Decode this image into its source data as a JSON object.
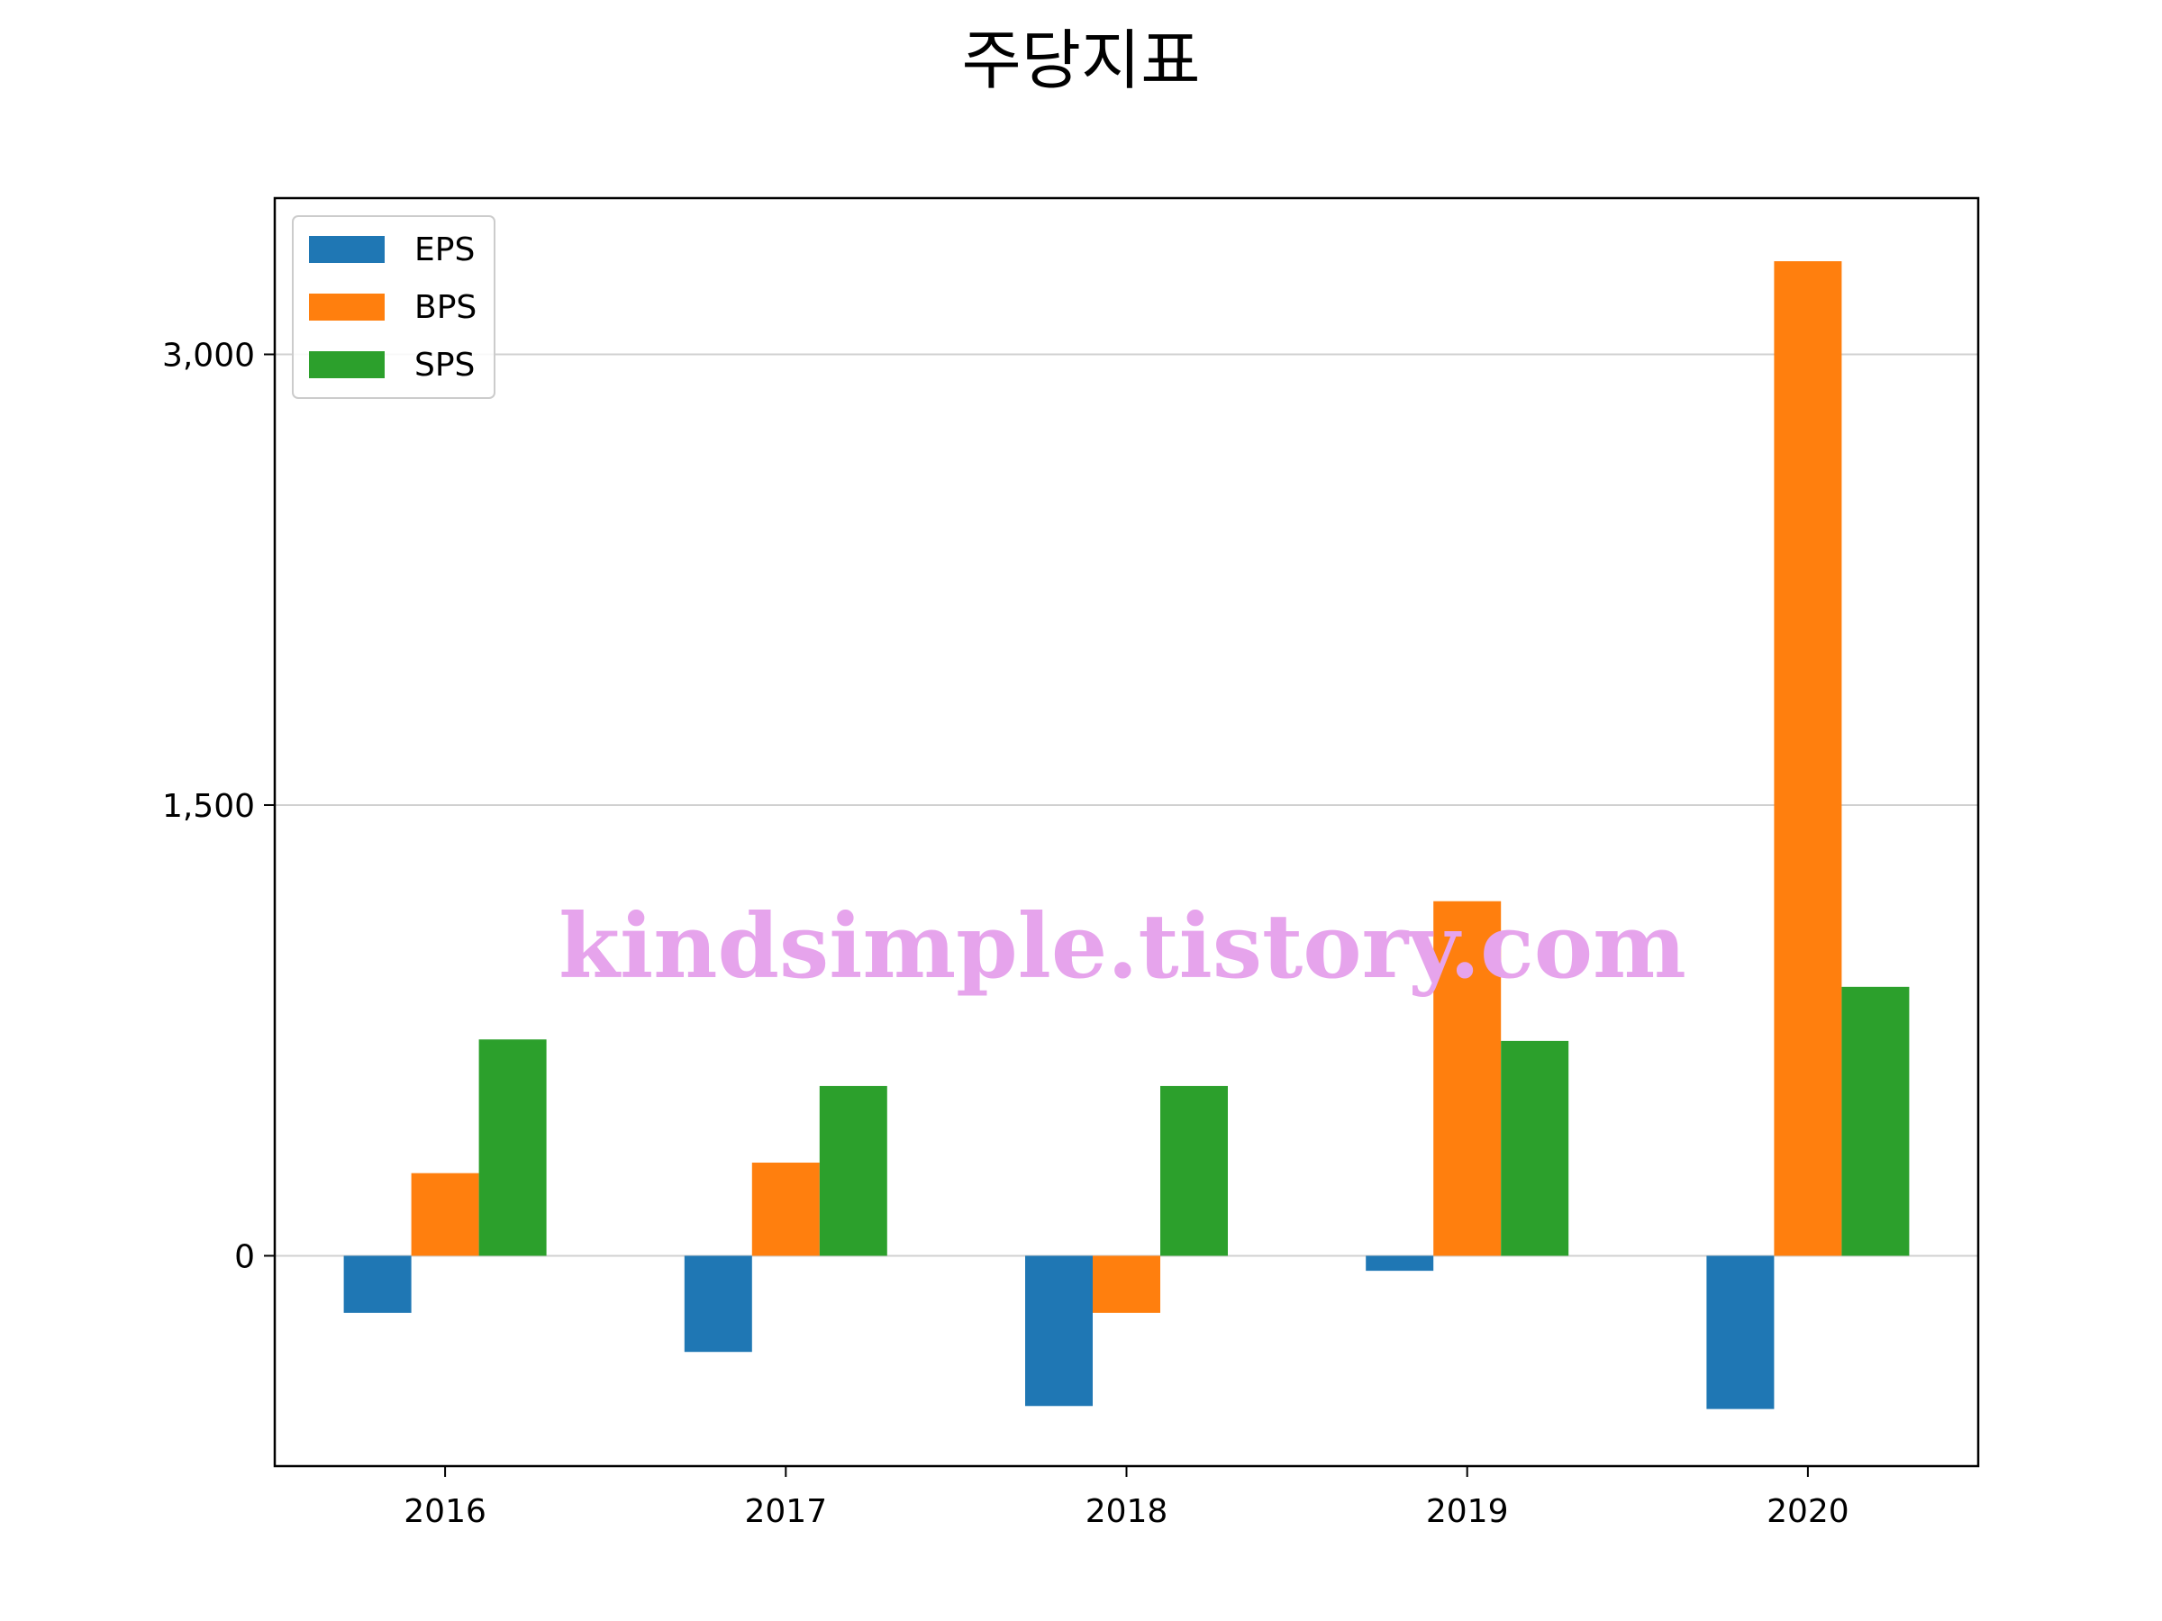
{
  "chart_data": {
    "type": "bar",
    "title": "주당지표",
    "categories": [
      "2016",
      "2017",
      "2018",
      "2019",
      "2020"
    ],
    "series": [
      {
        "name": "EPS",
        "color": "#1f77b4",
        "values": [
          -190,
          -320,
          -500,
          -50,
          -510
        ]
      },
      {
        "name": "BPS",
        "color": "#ff7f0e",
        "values": [
          275,
          310,
          -190,
          1180,
          3310
        ]
      },
      {
        "name": "SPS",
        "color": "#2ca02c",
        "values": [
          720,
          565,
          565,
          715,
          895
        ]
      }
    ],
    "ylim": [
      -700,
      3520
    ],
    "yticks": [
      0,
      1500,
      3000
    ],
    "ytick_labels": [
      "0",
      "1,500",
      "3,000"
    ],
    "grid": "horizontal",
    "legend_position": "top-left",
    "watermark": "kindsimple.tistory.com"
  }
}
